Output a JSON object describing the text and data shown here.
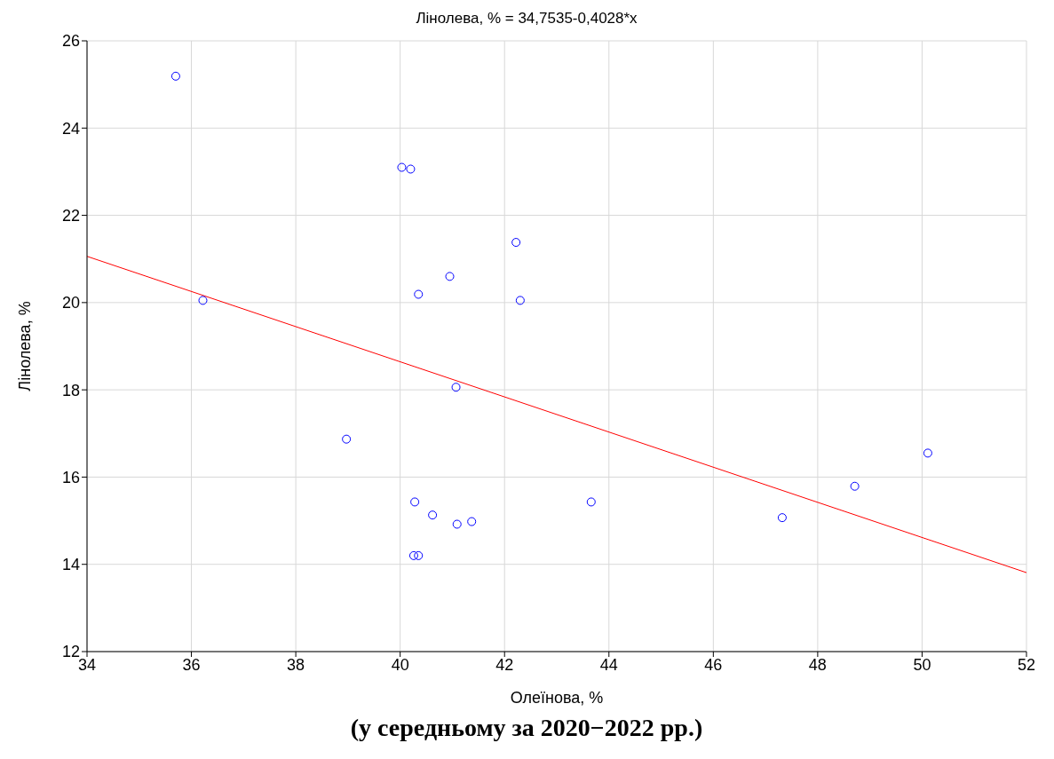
{
  "chart_data": {
    "type": "scatter",
    "title": "Лінолева, % = 34,7535-0,4028*x",
    "xlabel": "Олеїнова, %",
    "ylabel": "Лінолева, %",
    "annotations": [
      "(у середньому за 2020−2022 рр.)"
    ],
    "xlim": [
      34,
      52
    ],
    "xticks": [
      34,
      36,
      38,
      40,
      42,
      44,
      46,
      48,
      50,
      52
    ],
    "ylim": [
      12,
      26
    ],
    "yticks": [
      12,
      14,
      16,
      18,
      20,
      22,
      24,
      26
    ],
    "grid": true,
    "legend": false,
    "series": [
      {
        "marker": "circle",
        "color": "#0000ff",
        "x": [
          35.7,
          36.22,
          38.97,
          40.03,
          40.2,
          40.28,
          40.35,
          40.26,
          40.35,
          40.62,
          40.95,
          41.07,
          41.09,
          41.37,
          42.22,
          42.3,
          43.66,
          47.32,
          48.71,
          50.11
        ],
        "values": [
          25.19,
          20.05,
          16.87,
          23.1,
          23.06,
          15.43,
          20.19,
          14.2,
          14.2,
          15.13,
          20.6,
          18.06,
          14.92,
          14.98,
          21.38,
          20.05,
          15.43,
          15.07,
          15.79,
          16.55
        ]
      },
      {
        "type": "line",
        "color": "#ff0000",
        "x": [
          34,
          52
        ],
        "values": [
          21.06,
          13.81
        ]
      }
    ]
  }
}
